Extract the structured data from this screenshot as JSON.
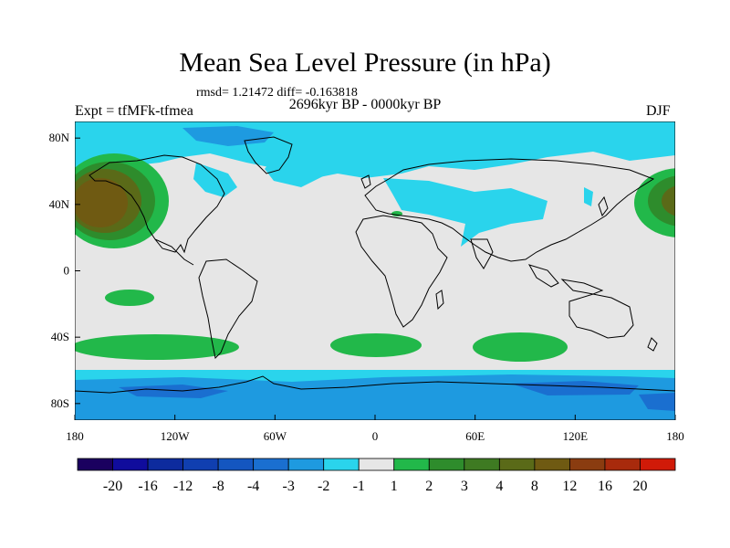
{
  "title": "Mean Sea Level Pressure (in hPa)",
  "stats": "rmsd= 1.21472 diff= -0.163818",
  "period": "2696kyr BP - 0000kyr BP",
  "experiment": "Expt = tfMFk-tfmea",
  "season": "DJF",
  "axes": {
    "y_ticks": [
      "80N",
      "40N",
      "0",
      "40S",
      "80S"
    ],
    "x_ticks": [
      "180",
      "120W",
      "60W",
      "0",
      "60E",
      "120E",
      "180"
    ]
  },
  "colorbar": {
    "colors": [
      "#1a005f",
      "#100c9c",
      "#0d2b9e",
      "#103fb0",
      "#1456c0",
      "#1a6fd0",
      "#1e9ae0",
      "#2ad4ec",
      "#e6e6e6",
      "#22b84a",
      "#2e8c2c",
      "#3e7a22",
      "#5a6a18",
      "#6f5a12",
      "#8a3c10",
      "#a82a0c",
      "#d01a08"
    ],
    "labels": [
      "-20",
      "-16",
      "-12",
      "-8",
      "-4",
      "-3",
      "-2",
      "-1",
      "1",
      "2",
      "3",
      "4",
      "8",
      "12",
      "16",
      "20"
    ]
  },
  "field_colors": {
    "neutral": "#e6e6e6",
    "neg1": "#2ad4ec",
    "neg2": "#1e9ae0",
    "neg3": "#1a6fd0",
    "pos1": "#22b84a",
    "pos2": "#2e8c2c",
    "pos3": "#5a6a18",
    "pos4": "#6f5a12",
    "coast": "#000000"
  }
}
